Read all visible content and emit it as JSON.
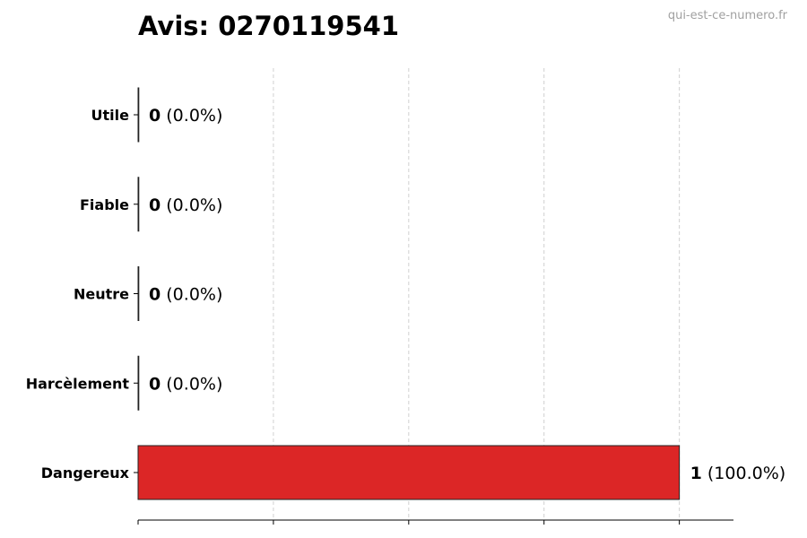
{
  "title": "Avis: 0270119541",
  "watermark": "qui-est-ce-numero.fr",
  "chart_data": {
    "type": "bar",
    "orientation": "horizontal",
    "title": "Avis: 0270119541",
    "categories": [
      "Utile",
      "Fiable",
      "Neutre",
      "Harcèlement",
      "Dangereux"
    ],
    "values": [
      0,
      0,
      0,
      0,
      1
    ],
    "labels": [
      {
        "count": "0",
        "pct": "(0.0%)"
      },
      {
        "count": "0",
        "pct": "(0.0%)"
      },
      {
        "count": "0",
        "pct": "(0.0%)"
      },
      {
        "count": "0",
        "pct": "(0.0%)"
      },
      {
        "count": "1",
        "pct": "(100.0%)"
      }
    ],
    "xlim": [
      0,
      1.1
    ],
    "xticks": [
      0,
      0.25,
      0.5,
      0.75,
      1.0
    ],
    "xtick_labels_shown": false,
    "grid": "vertical dashed",
    "bar_color": "#dc2626",
    "xlabel": "",
    "ylabel": ""
  }
}
